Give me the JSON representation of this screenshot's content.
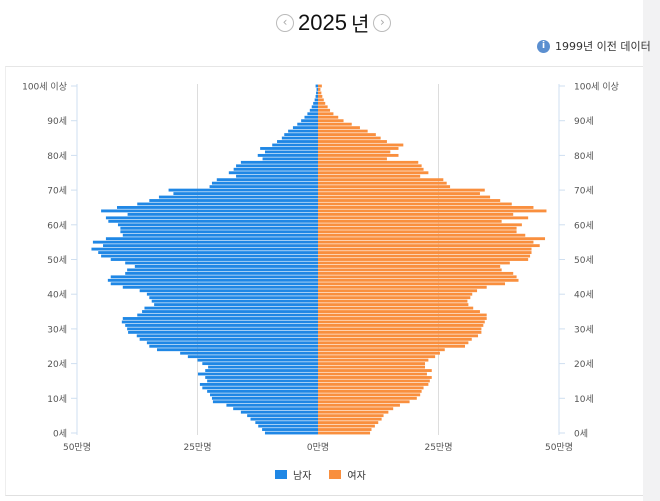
{
  "header": {
    "year": "2025",
    "year_suffix": "년",
    "prev_icon": "chevron-left-circle-icon",
    "next_icon": "chevron-right-circle-icon",
    "info_text": "1999년 이전 데이터",
    "info_icon": "info-icon"
  },
  "chart_data": {
    "type": "bar",
    "orientation": "horizontal-population-pyramid",
    "title": "",
    "age_tick_labels": [
      "0세",
      "10세",
      "20세",
      "30세",
      "40세",
      "50세",
      "60세",
      "70세",
      "80세",
      "90세",
      "100세 이상"
    ],
    "value_tick_labels": [
      "50만명",
      "25만명",
      "0만명",
      "25만명",
      "50만명"
    ],
    "xlim": [
      0,
      50
    ],
    "unit": "만명",
    "grid": true,
    "legend_position": "bottom",
    "colors": {
      "male": "#1f87e5",
      "female": "#f98f3e"
    },
    "series": [
      {
        "name": "남자",
        "values": [
          11,
          11.6,
          12.4,
          13,
          14,
          14.7,
          16,
          17.6,
          19,
          21.8,
          22,
          22.4,
          23,
          24,
          24.5,
          23,
          23.4,
          24.9,
          23.4,
          22.8,
          24,
          25,
          27,
          28.6,
          33.4,
          35,
          35.5,
          37,
          37.6,
          39.4,
          39.6,
          40,
          40.7,
          40.5,
          37.5,
          36.5,
          36,
          34,
          34.5,
          35,
          35.5,
          37,
          40.5,
          43,
          43.6,
          43,
          40,
          39.6,
          38,
          40,
          43,
          45,
          45.6,
          47,
          44.6,
          46.7,
          44,
          40.5,
          41,
          41,
          41.5,
          43.5,
          44,
          39.5,
          45,
          41.7,
          37.5,
          35,
          33,
          30,
          31,
          22.5,
          22,
          21,
          17,
          18.5,
          17.5,
          17,
          16,
          11.5,
          12.5,
          11,
          12,
          9.5,
          8.5,
          7.5,
          7,
          6.2,
          5.2,
          4.3,
          3.5,
          2.8,
          2.2,
          1.7,
          1.3,
          1,
          0.7,
          0.5,
          0.4,
          0.3,
          0.5
        ]
      },
      {
        "name": "여자",
        "values": [
          10.8,
          11.1,
          11.8,
          12.5,
          13.2,
          13.6,
          14.6,
          15.6,
          17,
          19,
          20.5,
          21.2,
          21.5,
          21.9,
          22.9,
          23.2,
          23.6,
          22.6,
          23.6,
          22.2,
          22.2,
          22.9,
          24.3,
          25.3,
          26.3,
          30.5,
          31.2,
          31.9,
          33.2,
          33.9,
          33.9,
          34.3,
          34.6,
          35,
          35,
          33.6,
          32.2,
          31.2,
          31,
          31.6,
          32,
          33,
          35,
          38.8,
          41.6,
          41.2,
          40.5,
          38.1,
          37.8,
          39.8,
          43.6,
          44,
          44.3,
          44.3,
          46,
          44.7,
          47.1,
          43,
          41.2,
          41.2,
          42.3,
          38.1,
          43.6,
          40.5,
          47.4,
          44.7,
          40.2,
          37.8,
          35.7,
          33.6,
          34.6,
          27.4,
          26.7,
          26,
          21.2,
          22.9,
          21.9,
          21.5,
          20.8,
          14.3,
          16.7,
          15,
          16.7,
          17.7,
          14.3,
          13,
          12,
          10.3,
          8.7,
          7,
          5.3,
          4.2,
          3.2,
          2.5,
          2,
          1.5,
          1.2,
          0.9,
          0.7,
          0.5,
          0.8
        ]
      }
    ]
  }
}
